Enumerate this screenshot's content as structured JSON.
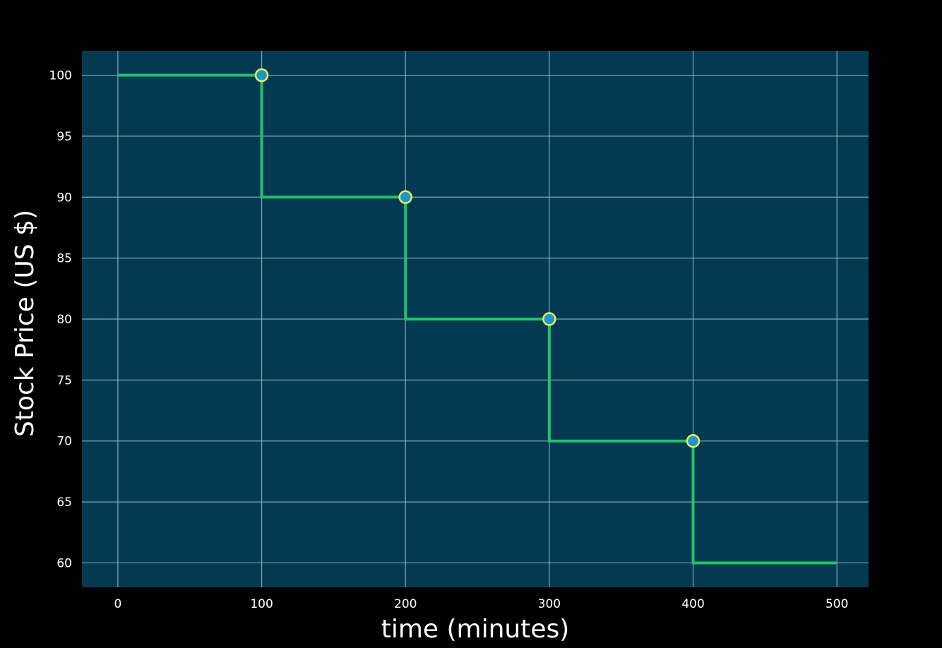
{
  "chart_data": {
    "type": "line",
    "title": "",
    "xlabel": "time (minutes)",
    "ylabel": "Stock Price (US $)",
    "xlim": [
      -25,
      522
    ],
    "ylim": [
      58,
      102
    ],
    "xticks": [
      0,
      100,
      200,
      300,
      400,
      500
    ],
    "yticks": [
      60,
      65,
      70,
      75,
      80,
      85,
      90,
      95,
      100
    ],
    "grid": true,
    "colors": {
      "figure_background": "#000000",
      "plot_background": "#033a52",
      "grid": "#9cb8c6",
      "line": "#20c46a",
      "marker_fill": "#1f95c9",
      "marker_edge": "#e6f05a"
    },
    "series": [
      {
        "line_style": "step",
        "x": [
          0,
          100,
          100,
          200,
          200,
          300,
          300,
          400,
          400,
          500
        ],
        "y": [
          100,
          100,
          90,
          90,
          80,
          80,
          70,
          70,
          60,
          60
        ]
      }
    ],
    "markers": {
      "x": [
        100,
        200,
        300,
        400
      ],
      "y": [
        100,
        90,
        80,
        70
      ]
    }
  }
}
